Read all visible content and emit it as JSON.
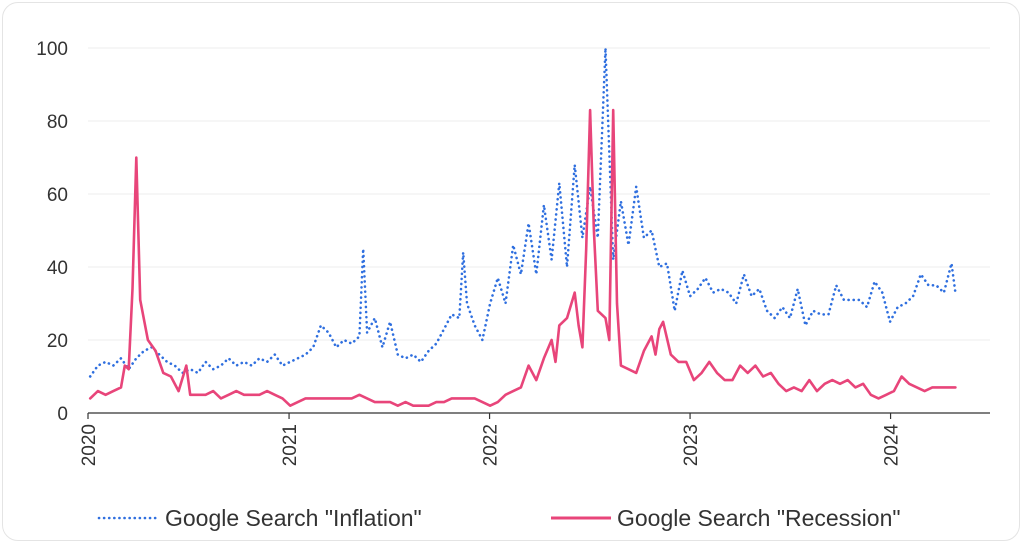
{
  "chart_data": {
    "type": "line",
    "title": "",
    "xlabel": "",
    "ylabel": "",
    "ylim": [
      0,
      100
    ],
    "xlim": [
      "2020-01-01",
      "2024-06-30"
    ],
    "y_ticks": [
      0,
      20,
      40,
      60,
      80,
      100
    ],
    "x_ticks": [
      {
        "date": "2020-01-01",
        "label": "2020"
      },
      {
        "date": "2021-01-01",
        "label": "2021"
      },
      {
        "date": "2022-01-01",
        "label": "2022"
      },
      {
        "date": "2023-01-01",
        "label": "2023"
      },
      {
        "date": "2024-01-01",
        "label": "2024"
      }
    ],
    "grid": "horizontal",
    "legend_position": "bottom",
    "colors": {
      "inflation": "#2f6fdf",
      "recession": "#e8457a",
      "grid": "#ececec",
      "axis": "#333333"
    },
    "series": [
      {
        "name": "Google Search \"Inflation\"",
        "style": "dotted",
        "points": [
          [
            "2020-01-05",
            10
          ],
          [
            "2020-01-19",
            13
          ],
          [
            "2020-02-02",
            14
          ],
          [
            "2020-02-16",
            13
          ],
          [
            "2020-03-01",
            15
          ],
          [
            "2020-03-15",
            12
          ],
          [
            "2020-03-29",
            15
          ],
          [
            "2020-04-12",
            17
          ],
          [
            "2020-04-26",
            18
          ],
          [
            "2020-05-10",
            16
          ],
          [
            "2020-05-24",
            14
          ],
          [
            "2020-06-07",
            13
          ],
          [
            "2020-06-21",
            11
          ],
          [
            "2020-07-05",
            12
          ],
          [
            "2020-07-19",
            11
          ],
          [
            "2020-08-02",
            14
          ],
          [
            "2020-08-16",
            12
          ],
          [
            "2020-08-30",
            13
          ],
          [
            "2020-09-13",
            15
          ],
          [
            "2020-09-27",
            13
          ],
          [
            "2020-10-11",
            14
          ],
          [
            "2020-10-25",
            13
          ],
          [
            "2020-11-08",
            15
          ],
          [
            "2020-11-22",
            14
          ],
          [
            "2020-12-06",
            16
          ],
          [
            "2020-12-20",
            13
          ],
          [
            "2021-01-03",
            14
          ],
          [
            "2021-01-17",
            15
          ],
          [
            "2021-01-31",
            16
          ],
          [
            "2021-02-14",
            18
          ],
          [
            "2021-02-28",
            24
          ],
          [
            "2021-03-14",
            22
          ],
          [
            "2021-03-28",
            18
          ],
          [
            "2021-04-11",
            20
          ],
          [
            "2021-04-25",
            19
          ],
          [
            "2021-05-09",
            21
          ],
          [
            "2021-05-16",
            45
          ],
          [
            "2021-05-23",
            22
          ],
          [
            "2021-06-06",
            26
          ],
          [
            "2021-06-20",
            18
          ],
          [
            "2021-07-04",
            25
          ],
          [
            "2021-07-18",
            16
          ],
          [
            "2021-08-01",
            15
          ],
          [
            "2021-08-15",
            16
          ],
          [
            "2021-08-29",
            14
          ],
          [
            "2021-09-12",
            17
          ],
          [
            "2021-09-26",
            19
          ],
          [
            "2021-10-10",
            23
          ],
          [
            "2021-10-24",
            27
          ],
          [
            "2021-11-07",
            26
          ],
          [
            "2021-11-14",
            44
          ],
          [
            "2021-11-21",
            30
          ],
          [
            "2021-12-05",
            24
          ],
          [
            "2021-12-19",
            20
          ],
          [
            "2022-01-02",
            30
          ],
          [
            "2022-01-16",
            37
          ],
          [
            "2022-01-30",
            30
          ],
          [
            "2022-02-13",
            46
          ],
          [
            "2022-02-27",
            38
          ],
          [
            "2022-03-13",
            52
          ],
          [
            "2022-03-27",
            38
          ],
          [
            "2022-04-10",
            57
          ],
          [
            "2022-04-24",
            42
          ],
          [
            "2022-05-08",
            63
          ],
          [
            "2022-05-22",
            40
          ],
          [
            "2022-06-05",
            68
          ],
          [
            "2022-06-19",
            48
          ],
          [
            "2022-07-03",
            62
          ],
          [
            "2022-07-17",
            48
          ],
          [
            "2022-07-31",
            100
          ],
          [
            "2022-08-14",
            42
          ],
          [
            "2022-08-28",
            58
          ],
          [
            "2022-09-11",
            46
          ],
          [
            "2022-09-25",
            62
          ],
          [
            "2022-10-09",
            48
          ],
          [
            "2022-10-23",
            50
          ],
          [
            "2022-11-06",
            40
          ],
          [
            "2022-11-20",
            41
          ],
          [
            "2022-12-04",
            28
          ],
          [
            "2022-12-18",
            39
          ],
          [
            "2023-01-01",
            32
          ],
          [
            "2023-01-15",
            34
          ],
          [
            "2023-01-29",
            37
          ],
          [
            "2023-02-12",
            33
          ],
          [
            "2023-02-26",
            34
          ],
          [
            "2023-03-12",
            33
          ],
          [
            "2023-03-26",
            30
          ],
          [
            "2023-04-09",
            38
          ],
          [
            "2023-04-23",
            32
          ],
          [
            "2023-05-07",
            34
          ],
          [
            "2023-05-21",
            28
          ],
          [
            "2023-06-04",
            26
          ],
          [
            "2023-06-18",
            29
          ],
          [
            "2023-07-02",
            26
          ],
          [
            "2023-07-16",
            34
          ],
          [
            "2023-07-30",
            24
          ],
          [
            "2023-08-13",
            28
          ],
          [
            "2023-08-27",
            27
          ],
          [
            "2023-09-10",
            27
          ],
          [
            "2023-09-24",
            35
          ],
          [
            "2023-10-08",
            31
          ],
          [
            "2023-10-22",
            31
          ],
          [
            "2023-11-05",
            31
          ],
          [
            "2023-11-19",
            29
          ],
          [
            "2023-12-03",
            36
          ],
          [
            "2023-12-17",
            33
          ],
          [
            "2023-12-31",
            25
          ],
          [
            "2024-01-14",
            29
          ],
          [
            "2024-01-28",
            30
          ],
          [
            "2024-02-11",
            32
          ],
          [
            "2024-02-25",
            38
          ],
          [
            "2024-03-10",
            35
          ],
          [
            "2024-03-24",
            35
          ],
          [
            "2024-04-07",
            33
          ],
          [
            "2024-04-21",
            41
          ],
          [
            "2024-04-28",
            33
          ]
        ]
      },
      {
        "name": "Google Search \"Recession\"",
        "style": "solid",
        "points": [
          [
            "2020-01-05",
            4
          ],
          [
            "2020-01-19",
            6
          ],
          [
            "2020-02-02",
            5
          ],
          [
            "2020-02-16",
            6
          ],
          [
            "2020-03-01",
            7
          ],
          [
            "2020-03-08",
            13
          ],
          [
            "2020-03-15",
            12
          ],
          [
            "2020-03-22",
            34
          ],
          [
            "2020-03-29",
            70
          ],
          [
            "2020-04-05",
            31
          ],
          [
            "2020-04-19",
            20
          ],
          [
            "2020-05-03",
            17
          ],
          [
            "2020-05-17",
            11
          ],
          [
            "2020-05-31",
            10
          ],
          [
            "2020-06-14",
            6
          ],
          [
            "2020-06-28",
            13
          ],
          [
            "2020-07-05",
            5
          ],
          [
            "2020-07-19",
            5
          ],
          [
            "2020-08-02",
            5
          ],
          [
            "2020-08-16",
            6
          ],
          [
            "2020-08-30",
            4
          ],
          [
            "2020-09-13",
            5
          ],
          [
            "2020-09-27",
            6
          ],
          [
            "2020-10-11",
            5
          ],
          [
            "2020-10-25",
            5
          ],
          [
            "2020-11-08",
            5
          ],
          [
            "2020-11-22",
            6
          ],
          [
            "2020-12-06",
            5
          ],
          [
            "2020-12-20",
            4
          ],
          [
            "2021-01-03",
            2
          ],
          [
            "2021-01-17",
            3
          ],
          [
            "2021-01-31",
            4
          ],
          [
            "2021-02-14",
            4
          ],
          [
            "2021-02-28",
            4
          ],
          [
            "2021-03-14",
            4
          ],
          [
            "2021-03-28",
            4
          ],
          [
            "2021-04-11",
            4
          ],
          [
            "2021-04-25",
            4
          ],
          [
            "2021-05-09",
            5
          ],
          [
            "2021-05-23",
            4
          ],
          [
            "2021-06-06",
            3
          ],
          [
            "2021-06-20",
            3
          ],
          [
            "2021-07-04",
            3
          ],
          [
            "2021-07-18",
            2
          ],
          [
            "2021-08-01",
            3
          ],
          [
            "2021-08-15",
            2
          ],
          [
            "2021-08-29",
            2
          ],
          [
            "2021-09-12",
            2
          ],
          [
            "2021-09-26",
            3
          ],
          [
            "2021-10-10",
            3
          ],
          [
            "2021-10-24",
            4
          ],
          [
            "2021-11-07",
            4
          ],
          [
            "2021-11-21",
            4
          ],
          [
            "2021-12-05",
            4
          ],
          [
            "2021-12-19",
            3
          ],
          [
            "2022-01-02",
            2
          ],
          [
            "2022-01-16",
            3
          ],
          [
            "2022-01-30",
            5
          ],
          [
            "2022-02-13",
            6
          ],
          [
            "2022-02-27",
            7
          ],
          [
            "2022-03-13",
            13
          ],
          [
            "2022-03-27",
            9
          ],
          [
            "2022-04-10",
            15
          ],
          [
            "2022-04-24",
            20
          ],
          [
            "2022-05-01",
            14
          ],
          [
            "2022-05-08",
            24
          ],
          [
            "2022-05-22",
            26
          ],
          [
            "2022-06-05",
            33
          ],
          [
            "2022-06-12",
            24
          ],
          [
            "2022-06-19",
            18
          ],
          [
            "2022-06-26",
            45
          ],
          [
            "2022-07-03",
            83
          ],
          [
            "2022-07-10",
            50
          ],
          [
            "2022-07-17",
            28
          ],
          [
            "2022-07-31",
            26
          ],
          [
            "2022-08-07",
            20
          ],
          [
            "2022-08-14",
            83
          ],
          [
            "2022-08-21",
            30
          ],
          [
            "2022-08-28",
            13
          ],
          [
            "2022-09-11",
            12
          ],
          [
            "2022-09-25",
            11
          ],
          [
            "2022-10-09",
            17
          ],
          [
            "2022-10-23",
            21
          ],
          [
            "2022-10-30",
            16
          ],
          [
            "2022-11-06",
            23
          ],
          [
            "2022-11-13",
            25
          ],
          [
            "2022-11-27",
            16
          ],
          [
            "2022-12-11",
            14
          ],
          [
            "2022-12-25",
            14
          ],
          [
            "2023-01-08",
            9
          ],
          [
            "2023-01-22",
            11
          ],
          [
            "2023-02-05",
            14
          ],
          [
            "2023-02-19",
            11
          ],
          [
            "2023-03-05",
            9
          ],
          [
            "2023-03-19",
            9
          ],
          [
            "2023-04-02",
            13
          ],
          [
            "2023-04-16",
            11
          ],
          [
            "2023-04-30",
            13
          ],
          [
            "2023-05-14",
            10
          ],
          [
            "2023-05-28",
            11
          ],
          [
            "2023-06-11",
            8
          ],
          [
            "2023-06-25",
            6
          ],
          [
            "2023-07-09",
            7
          ],
          [
            "2023-07-23",
            6
          ],
          [
            "2023-08-06",
            9
          ],
          [
            "2023-08-20",
            6
          ],
          [
            "2023-09-03",
            8
          ],
          [
            "2023-09-17",
            9
          ],
          [
            "2023-10-01",
            8
          ],
          [
            "2023-10-15",
            9
          ],
          [
            "2023-10-29",
            7
          ],
          [
            "2023-11-12",
            8
          ],
          [
            "2023-11-26",
            5
          ],
          [
            "2023-12-10",
            4
          ],
          [
            "2023-12-24",
            5
          ],
          [
            "2024-01-07",
            6
          ],
          [
            "2024-01-21",
            10
          ],
          [
            "2024-02-04",
            8
          ],
          [
            "2024-02-18",
            7
          ],
          [
            "2024-03-03",
            6
          ],
          [
            "2024-03-17",
            7
          ],
          [
            "2024-03-31",
            7
          ],
          [
            "2024-04-14",
            7
          ],
          [
            "2024-04-28",
            7
          ]
        ]
      }
    ]
  }
}
